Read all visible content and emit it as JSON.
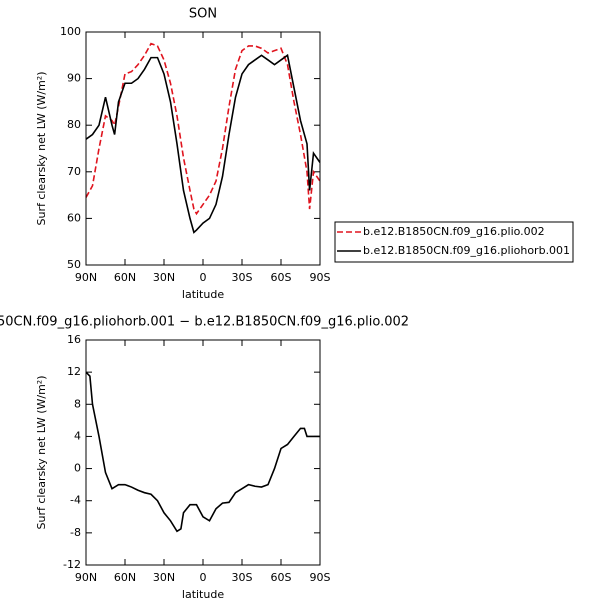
{
  "chart_data": [
    {
      "type": "line",
      "title": "SON",
      "xlabel": "latitude",
      "ylabel": "Surf clearsky net LW (W/m²)",
      "xlim": [
        90,
        -90
      ],
      "ylim": [
        50,
        100
      ],
      "xticks": [
        {
          "value": 90,
          "label": "90N"
        },
        {
          "value": 60,
          "label": "60N"
        },
        {
          "value": 30,
          "label": "30N"
        },
        0,
        {
          "value": -30,
          "label": "30S"
        },
        {
          "value": -60,
          "label": "60S"
        },
        {
          "value": -90,
          "label": "90S"
        }
      ],
      "yticks": [
        50,
        60,
        70,
        80,
        90,
        100
      ],
      "legend": "right",
      "x": [
        90,
        85,
        80,
        75,
        70,
        68,
        65,
        60,
        55,
        50,
        45,
        40,
        35,
        30,
        25,
        20,
        15,
        10,
        7,
        5,
        0,
        -5,
        -10,
        -15,
        -20,
        -25,
        -30,
        -35,
        -40,
        -45,
        -50,
        -55,
        -60,
        -65,
        -70,
        -75,
        -80,
        -82,
        -85,
        -90
      ],
      "series": [
        {
          "name": "b.e12.B1850CN.f09_g16.plio.002",
          "color": "#e0141e",
          "dash": "dashed",
          "values": [
            64.5,
            67,
            75,
            82,
            81,
            80,
            84,
            91,
            91.5,
            93,
            95,
            97.5,
            97,
            94,
            89,
            82,
            73,
            66,
            62,
            61,
            63,
            65,
            68,
            75,
            84,
            92,
            96,
            97,
            97,
            96.5,
            95.5,
            96,
            96.5,
            93,
            85,
            78,
            70,
            62,
            70,
            68
          ]
        },
        {
          "name": "b.e12.B1850CN.f09_g16.pliohorb.001",
          "color": "#000000",
          "dash": "solid",
          "values": [
            77,
            78,
            80,
            86,
            80,
            78,
            85,
            89,
            89,
            90,
            92,
            94.5,
            94.5,
            91,
            85,
            76,
            66,
            60,
            57,
            57.5,
            59,
            60,
            63,
            69,
            78,
            86,
            91,
            93,
            94,
            95,
            94,
            93,
            94,
            95,
            88,
            81,
            76,
            66,
            74,
            72
          ]
        }
      ]
    },
    {
      "type": "line",
      "title": "50CN.f09_g16.pliohorb.001 − b.e12.B1850CN.f09_g16.plio.002",
      "xlabel": "latitude",
      "ylabel": "Surf clearsky net LW (W/m²)",
      "xlim": [
        90,
        -90
      ],
      "ylim": [
        -12,
        16
      ],
      "xticks": [
        {
          "value": 90,
          "label": "90N"
        },
        {
          "value": 60,
          "label": "60N"
        },
        {
          "value": 30,
          "label": "30N"
        },
        0,
        {
          "value": -30,
          "label": "30S"
        },
        {
          "value": -60,
          "label": "60S"
        },
        {
          "value": -90,
          "label": "90S"
        }
      ],
      "yticks": [
        -12,
        -8,
        -4,
        0,
        4,
        8,
        12,
        16
      ],
      "x": [
        90,
        87,
        85,
        80,
        75,
        70,
        65,
        60,
        55,
        50,
        45,
        40,
        35,
        30,
        25,
        20,
        17,
        15,
        10,
        5,
        0,
        -5,
        -10,
        -15,
        -20,
        -25,
        -30,
        -35,
        -40,
        -45,
        -50,
        -55,
        -60,
        -65,
        -70,
        -75,
        -78,
        -80,
        -85,
        -90
      ],
      "series": [
        {
          "color": "#000000",
          "dash": "solid",
          "values": [
            12,
            11.5,
            8,
            4,
            -0.5,
            -2.5,
            -2,
            -2,
            -2.3,
            -2.7,
            -3,
            -3.2,
            -4,
            -5.5,
            -6.5,
            -7.8,
            -7.5,
            -5.5,
            -4.5,
            -4.5,
            -6,
            -6.5,
            -5,
            -4.3,
            -4.2,
            -3,
            -2.5,
            -2,
            -2.2,
            -2.3,
            -2,
            0,
            2.5,
            3,
            4,
            5,
            5,
            4,
            4,
            4
          ]
        }
      ]
    }
  ]
}
